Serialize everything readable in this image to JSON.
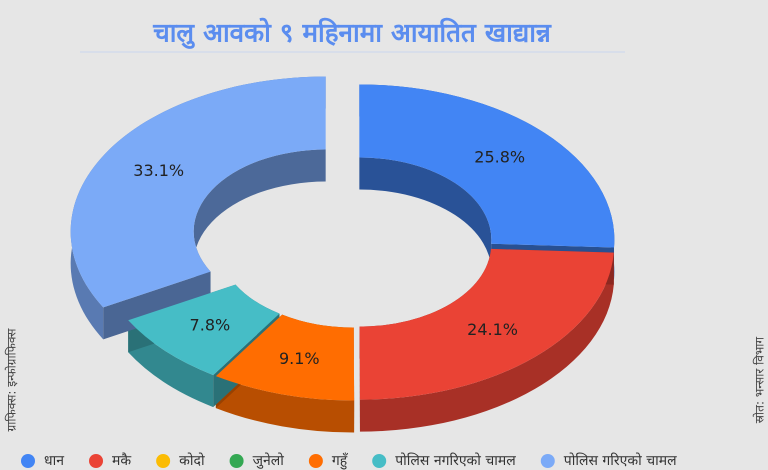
{
  "chart_data": {
    "type": "donut3d",
    "title": "चालु आवको ९ महिनामा आयातित खाद्यान्न",
    "categories": [
      "धान",
      "मकै",
      "कोदो",
      "जुनेलो",
      "गहुँ",
      "पोलिस नगरिएको चामल",
      "पोलिस गरिएको चामल"
    ],
    "values": [
      25.8,
      24.1,
      0,
      0,
      9.1,
      7.8,
      33.1
    ],
    "value_labels": [
      "25.8%",
      "24.1%",
      null,
      null,
      "9.1%",
      "7.8%",
      "33.1%"
    ],
    "colors": [
      "#4285f4",
      "#ea4335",
      "#fbbc04",
      "#34a853",
      "#ff6d01",
      "#46bdc6",
      "#7baaf7"
    ],
    "legend": "bottom",
    "credit": "ग्राफिक्स: इन्फोग्राफिक्स",
    "source": "स्रोत: भन्सार विभाग"
  }
}
